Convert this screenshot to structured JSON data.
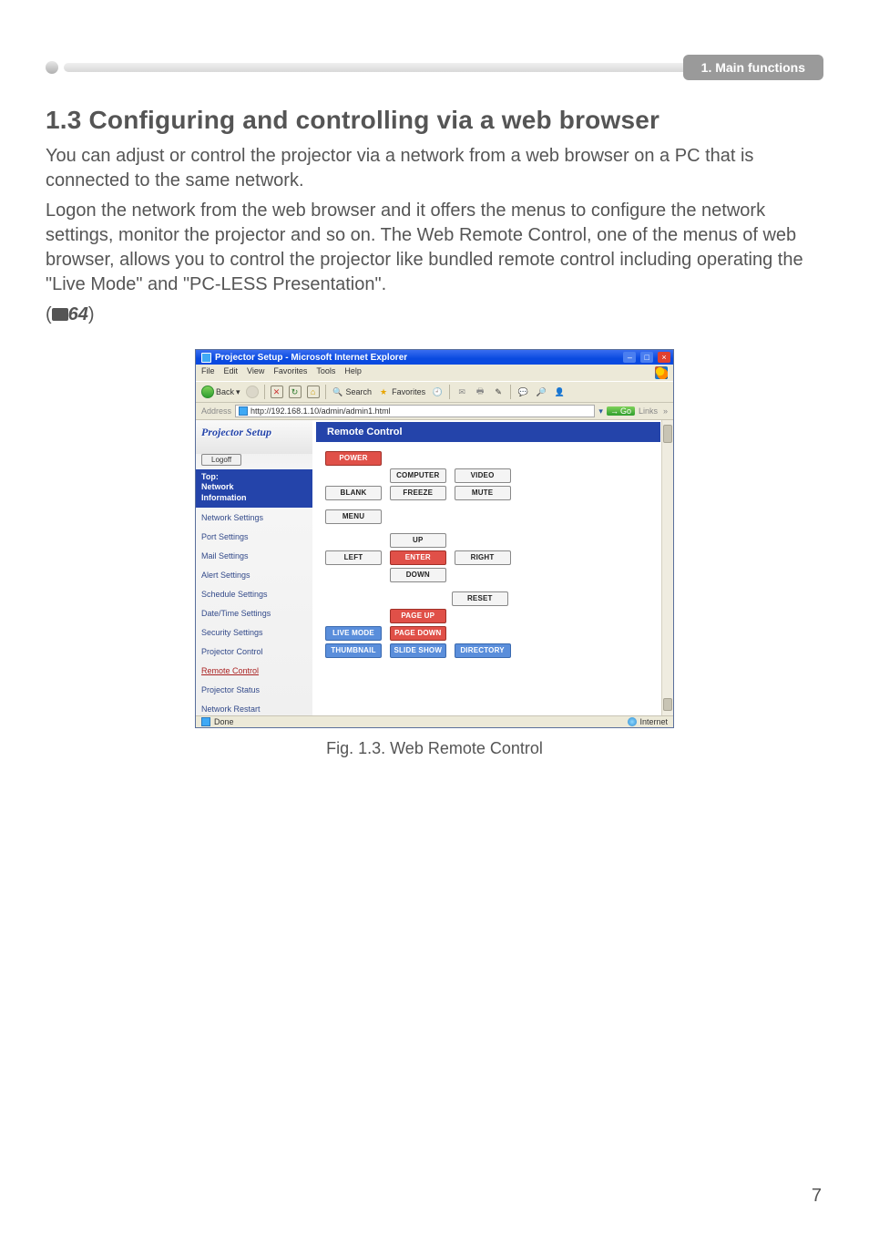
{
  "header": {
    "chip": "1. Main functions"
  },
  "heading": "1.3 Configuring and controlling via a web browser",
  "para1": "You can adjust or control the projector via a network from a web browser on a PC that is connected to the same network.",
  "para2": "Logon the network from the web browser and it offers the menus to configure the network settings, monitor the projector and so on. The Web Remote Control, one of the menus of web browser, allows you to control the projector like bundled remote control including operating the \"Live Mode\" and \"PC-LESS Presentation\".",
  "ref_page": "64",
  "figure_caption": "Fig. 1.3. Web Remote Control",
  "page_number": "7",
  "browser": {
    "title": "Projector Setup - Microsoft Internet Explorer",
    "menu": [
      "File",
      "Edit",
      "View",
      "Favorites",
      "Tools",
      "Help"
    ],
    "toolbar": {
      "back": "Back",
      "search": "Search",
      "favorites": "Favorites"
    },
    "address_label": "Address",
    "url": "http://192.168.1.10/admin/admin1.html",
    "go": "Go",
    "links": "Links",
    "status_left": "Done",
    "status_right": "Internet"
  },
  "sidebar": {
    "title": "Projector Setup",
    "logoff": "Logoff",
    "top_lines": [
      "Top:",
      "Network",
      "Information"
    ],
    "items": [
      "Network Settings",
      "Port Settings",
      "Mail Settings",
      "Alert Settings",
      "Schedule Settings",
      "Date/Time Settings",
      "Security Settings",
      "Projector Control",
      "Remote Control",
      "Projector Status",
      "Network Restart"
    ],
    "active_index": 8
  },
  "panel": {
    "title": "Remote Control"
  },
  "buttons": {
    "power": "POWER",
    "computer": "COMPUTER",
    "video": "VIDEO",
    "blank": "BLANK",
    "freeze": "FREEZE",
    "mute": "MUTE",
    "menu": "MENU",
    "up": "UP",
    "left": "LEFT",
    "enter": "ENTER",
    "right": "RIGHT",
    "down": "DOWN",
    "reset": "RESET",
    "pageup": "PAGE UP",
    "pagedown": "PAGE DOWN",
    "livemode": "LIVE MODE",
    "slideshow": "SLIDE SHOW",
    "thumbnail": "THUMBNAIL",
    "directory": "DIRECTORY"
  },
  "colors": {
    "header_chip_bg": "#9a9a9a",
    "heading_color": "#555555",
    "ie_title_bg": "#0a4ae0",
    "sidebar_top_bg": "#2444aa",
    "btn_red": "#e05048",
    "btn_blue": "#5a8edb",
    "btn_gray": "#f4f4f4"
  }
}
